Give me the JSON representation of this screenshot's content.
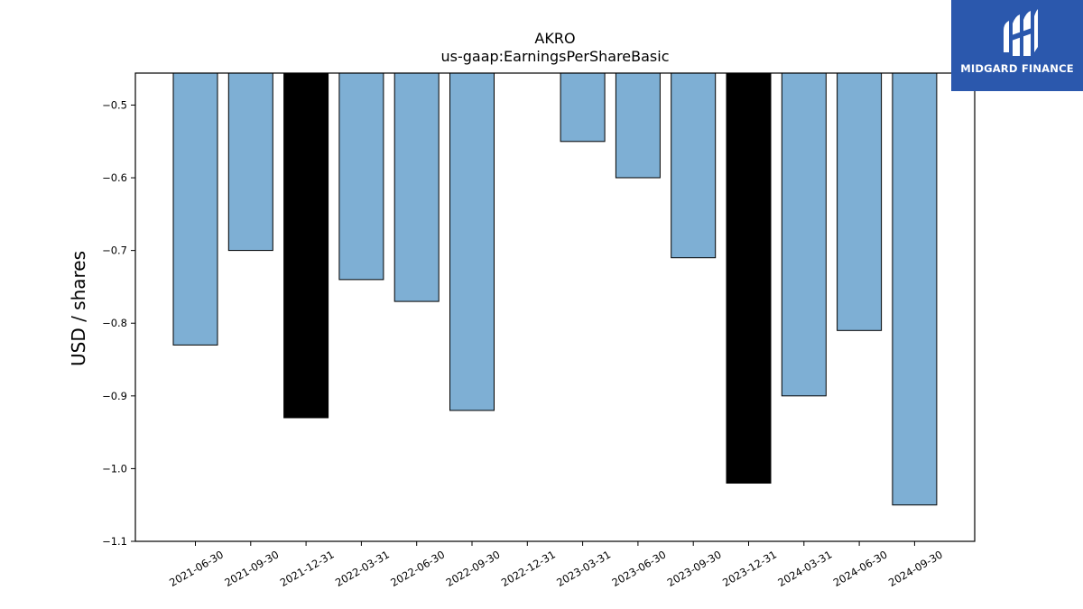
{
  "chart_data": {
    "type": "bar",
    "title": "AKRO",
    "subtitle": "us-gaap:EarningsPerShareBasic",
    "xlabel": "",
    "ylabel": "USD / shares",
    "ylim": [
      -1.1,
      -0.456
    ],
    "yticks": [
      -0.5,
      -0.6,
      -0.7,
      -0.8,
      -0.9,
      -1.0,
      -1.1
    ],
    "ytick_labels": [
      "−0.5",
      "−0.6",
      "−0.7",
      "−0.8",
      "−0.9",
      "−1.0",
      "−1.1"
    ],
    "categories": [
      "2021-06-30",
      "2021-09-30",
      "2021-12-31",
      "2022-03-31",
      "2022-06-30",
      "2022-09-30",
      "2022-12-31",
      "2023-03-31",
      "2023-06-30",
      "2023-09-30",
      "2023-12-31",
      "2024-03-31",
      "2024-06-30",
      "2024-09-30"
    ],
    "values": [
      -0.83,
      -0.7,
      -0.93,
      -0.74,
      -0.77,
      -0.92,
      null,
      -0.55,
      -0.6,
      -0.71,
      -1.02,
      -0.9,
      -0.81,
      -1.05
    ],
    "bar_colors": [
      "#7eafd4",
      "#7eafd4",
      "#000000",
      "#7eafd4",
      "#7eafd4",
      "#7eafd4",
      "#7eafd4",
      "#7eafd4",
      "#7eafd4",
      "#7eafd4",
      "#000000",
      "#7eafd4",
      "#7eafd4",
      "#7eafd4"
    ],
    "grid": false,
    "legend": "none"
  },
  "logo": {
    "text": "MIDGARD FINANCE",
    "icon": "midgard-logo-icon",
    "background": "#2b58ad"
  },
  "colors": {
    "bar_default": "#7eafd4",
    "bar_highlight": "#000000",
    "edge": "#000000"
  }
}
